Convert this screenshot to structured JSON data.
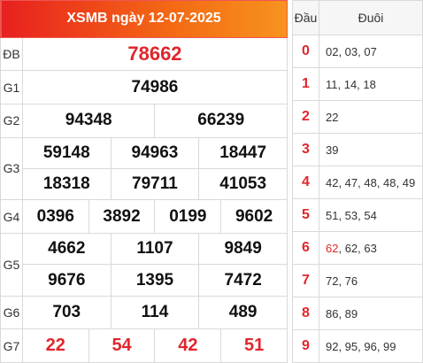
{
  "header": {
    "title": "XSMB ngày 12-07-2025"
  },
  "prizes": {
    "db": {
      "label": "ĐB",
      "numbers": [
        "78662"
      ]
    },
    "g1": {
      "label": "G1",
      "numbers": [
        "74986"
      ]
    },
    "g2": {
      "label": "G2",
      "numbers": [
        "94348",
        "66239"
      ]
    },
    "g3": {
      "label": "G3",
      "numbers": [
        "59148",
        "94963",
        "18447",
        "18318",
        "79711",
        "41053"
      ]
    },
    "g4": {
      "label": "G4",
      "numbers": [
        "0396",
        "3892",
        "0199",
        "9602"
      ]
    },
    "g5": {
      "label": "G5",
      "numbers": [
        "4662",
        "1107",
        "9849",
        "9676",
        "1395",
        "7472"
      ]
    },
    "g6": {
      "label": "G6",
      "numbers": [
        "703",
        "114",
        "489"
      ]
    },
    "g7": {
      "label": "G7",
      "numbers": [
        "22",
        "54",
        "42",
        "51"
      ]
    }
  },
  "loto": {
    "head_label": "Đầu",
    "tail_label": "Đuôi",
    "rows": [
      {
        "head": "0",
        "tails": "02, 03, 07"
      },
      {
        "head": "1",
        "tails": "11, 14, 18"
      },
      {
        "head": "2",
        "tails": "22"
      },
      {
        "head": "3",
        "tails": "39"
      },
      {
        "head": "4",
        "tails": "42, 47, 48, 48, 49"
      },
      {
        "head": "5",
        "tails": "51, 53, 54"
      },
      {
        "head": "6",
        "tails_highlight": "62",
        "tails_rest": ", 62, 63"
      },
      {
        "head": "7",
        "tails": "72, 76"
      },
      {
        "head": "8",
        "tails": "86, 89"
      },
      {
        "head": "9",
        "tails": "92, 95, 96, 99"
      }
    ]
  },
  "colors": {
    "accent_red": "#e0262d",
    "header_gradient_start": "#e8201f",
    "header_gradient_end": "#f7931e"
  }
}
